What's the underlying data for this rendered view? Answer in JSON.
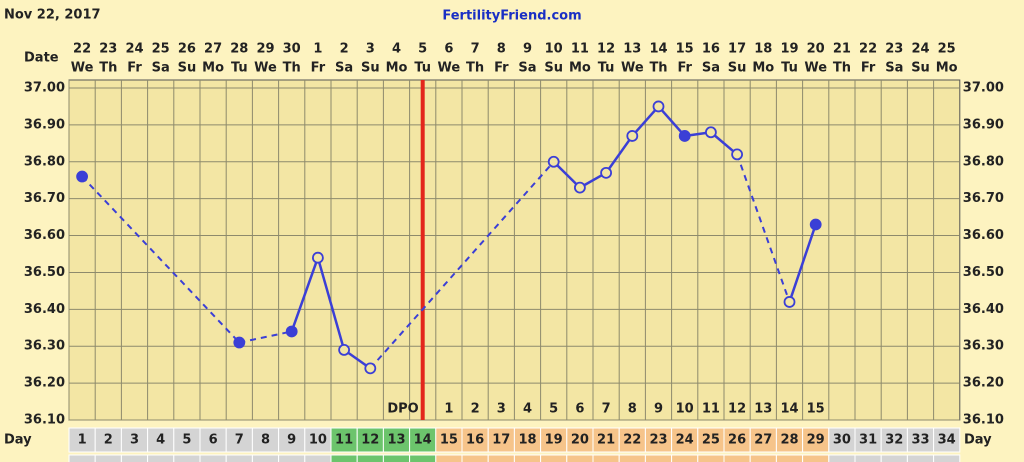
{
  "chart_data": {
    "type": "line",
    "title": "FertilityFriend.com",
    "chart_date": "Nov 22, 2017",
    "date_label": "Date",
    "day_label": "Day",
    "dpo_label": "DPO",
    "dates": [
      "22",
      "23",
      "24",
      "25",
      "26",
      "27",
      "28",
      "29",
      "30",
      "1",
      "2",
      "3",
      "4",
      "5",
      "6",
      "7",
      "8",
      "9",
      "10",
      "11",
      "12",
      "13",
      "14",
      "15",
      "16",
      "17",
      "18",
      "19",
      "20",
      "21",
      "22",
      "23",
      "24",
      "25"
    ],
    "weekdays": [
      "We",
      "Th",
      "Fr",
      "Sa",
      "Su",
      "Mo",
      "Tu",
      "We",
      "Th",
      "Fr",
      "Sa",
      "Su",
      "Mo",
      "Tu",
      "We",
      "Th",
      "Fr",
      "Sa",
      "Su",
      "Mo",
      "Tu",
      "We",
      "Th",
      "Fr",
      "Sa",
      "Su",
      "Mo",
      "Tu",
      "We",
      "Th",
      "Fr",
      "Sa",
      "Su",
      "Mo"
    ],
    "x": [
      1,
      2,
      3,
      4,
      5,
      6,
      7,
      8,
      9,
      10,
      11,
      12,
      13,
      14,
      15,
      16,
      17,
      18,
      19,
      20,
      21,
      22,
      23,
      24,
      25,
      26,
      27,
      28,
      29,
      30,
      31,
      32,
      33,
      34
    ],
    "xlim": [
      0.5,
      34.5
    ],
    "dpo": [
      null,
      null,
      null,
      null,
      null,
      null,
      null,
      null,
      null,
      null,
      null,
      null,
      null,
      null,
      1,
      2,
      3,
      4,
      5,
      6,
      7,
      8,
      9,
      10,
      11,
      12,
      13,
      14,
      15,
      null,
      null,
      null,
      null,
      null
    ],
    "values": [
      36.76,
      null,
      null,
      null,
      null,
      null,
      36.31,
      null,
      36.34,
      36.54,
      36.29,
      36.24,
      null,
      null,
      null,
      null,
      null,
      null,
      36.8,
      36.73,
      36.77,
      36.87,
      36.95,
      36.87,
      36.88,
      36.82,
      null,
      36.42,
      36.63,
      null,
      null,
      null,
      null,
      null
    ],
    "filled": [
      true,
      null,
      null,
      null,
      null,
      null,
      true,
      null,
      true,
      false,
      false,
      false,
      null,
      null,
      null,
      null,
      null,
      null,
      false,
      false,
      false,
      false,
      false,
      true,
      false,
      false,
      null,
      false,
      true,
      null,
      null,
      null,
      null,
      null
    ],
    "color": "#3b3fd6",
    "coverline": {
      "x": 14,
      "color": "#e3261c"
    },
    "cell_colors": [
      "#d4d4d4",
      "#d4d4d4",
      "#d4d4d4",
      "#d4d4d4",
      "#d4d4d4",
      "#d4d4d4",
      "#d4d4d4",
      "#d4d4d4",
      "#d4d4d4",
      "#d4d4d4",
      "#6cc46c",
      "#6cc46c",
      "#6cc46c",
      "#6cc46c",
      "#f6c48a",
      "#f6c48a",
      "#f6c48a",
      "#f6c48a",
      "#f6c48a",
      "#f6c48a",
      "#f6c48a",
      "#f6c48a",
      "#f6c48a",
      "#f6c48a",
      "#f6c48a",
      "#f6c48a",
      "#f6c48a",
      "#f6c48a",
      "#f6c48a",
      "#d4d4d4",
      "#d4d4d4",
      "#d4d4d4",
      "#d4d4d4",
      "#d4d4d4"
    ],
    "ylim": [
      36.1,
      37.0
    ],
    "yticks": [
      {
        "value": 37.0,
        "label": "37.00"
      },
      {
        "value": 36.9,
        "label": "36.90"
      },
      {
        "value": 36.8,
        "label": "36.80"
      },
      {
        "value": 36.7,
        "label": "36.70"
      },
      {
        "value": 36.6,
        "label": "36.60"
      },
      {
        "value": 36.5,
        "label": "36.50"
      },
      {
        "value": 36.4,
        "label": "36.40"
      },
      {
        "value": 36.3,
        "label": "36.30"
      },
      {
        "value": 36.2,
        "label": "36.20"
      },
      {
        "value": 36.1,
        "label": "36.10"
      }
    ],
    "grid": true
  }
}
